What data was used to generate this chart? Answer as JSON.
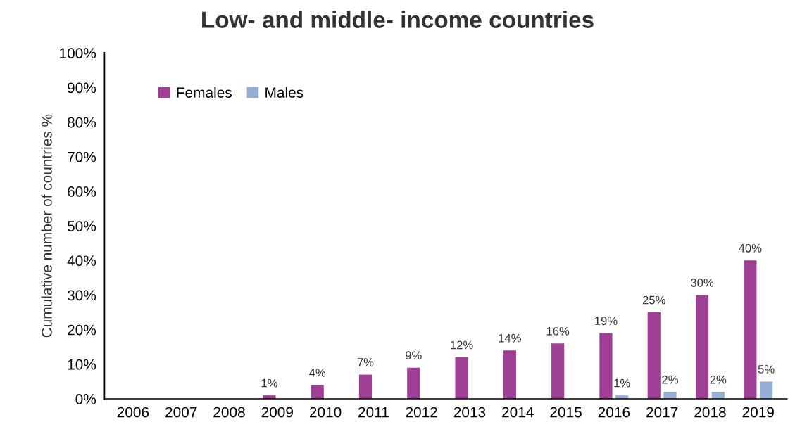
{
  "chart_data": {
    "type": "bar",
    "title": "Low- and middle- income countries",
    "ylabel": "Cumulative number of countries %",
    "categories": [
      "2006",
      "2007",
      "2008",
      "2009",
      "2010",
      "2011",
      "2012",
      "2013",
      "2014",
      "2015",
      "2016",
      "2017",
      "2018",
      "2019"
    ],
    "series": [
      {
        "name": "Females",
        "color": "#9e3f96",
        "values": [
          0,
          0,
          0,
          1,
          4,
          7,
          9,
          12,
          14,
          16,
          19,
          25,
          30,
          40
        ],
        "value_labels": [
          null,
          null,
          null,
          "1%",
          "4%",
          "7%",
          "9%",
          "12%",
          "14%",
          "16%",
          "19%",
          "25%",
          "30%",
          "40%"
        ]
      },
      {
        "name": "Males",
        "color": "#94aed6",
        "values": [
          0,
          0,
          0,
          0,
          0,
          0,
          0,
          0,
          0,
          0,
          1,
          2,
          2,
          5
        ],
        "value_labels": [
          null,
          null,
          null,
          null,
          null,
          null,
          null,
          null,
          null,
          null,
          "1%",
          "2%",
          "2%",
          "5%"
        ]
      }
    ],
    "ylim": [
      0,
      100
    ],
    "yticks": [
      {
        "value": 0,
        "label": "0%"
      },
      {
        "value": 10,
        "label": "10%"
      },
      {
        "value": 20,
        "label": "20%"
      },
      {
        "value": 30,
        "label": "30%"
      },
      {
        "value": 40,
        "label": "40%"
      },
      {
        "value": 50,
        "label": "50%"
      },
      {
        "value": 60,
        "label": "60%"
      },
      {
        "value": 70,
        "label": "70%"
      },
      {
        "value": 80,
        "label": "80%"
      },
      {
        "value": 90,
        "label": "90%"
      },
      {
        "value": 100,
        "label": "100%"
      }
    ],
    "legend": "top left",
    "grid": false
  }
}
